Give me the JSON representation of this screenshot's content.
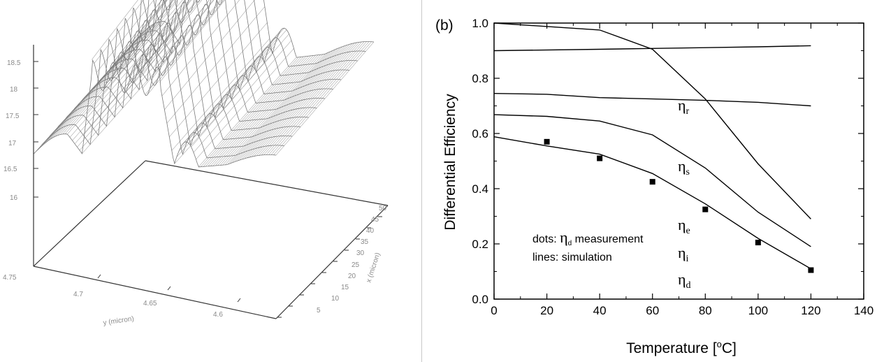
{
  "left_panel": {
    "z_ticks": [
      "18.5",
      "18",
      "17.5",
      "17",
      "16.5",
      "16"
    ],
    "y_ticks": [
      "4.75",
      "4.7",
      "4.65",
      "4.6"
    ],
    "y_label": "y (micron)",
    "x_ticks": [
      "5",
      "10",
      "15",
      "20",
      "25",
      "30",
      "35",
      "40",
      "45",
      "50"
    ],
    "x_label": "x (micron)"
  },
  "chart_data": {
    "type": "line",
    "panel_label": "(b)",
    "xlabel": "Temperature [",
    "xlabel_sup": "o",
    "xlabel_end": "C]",
    "ylabel": "Differential Efficiency",
    "xlim": [
      0,
      140
    ],
    "ylim": [
      0,
      1.0
    ],
    "x_ticks": [
      0,
      20,
      40,
      60,
      80,
      100,
      120,
      140
    ],
    "y_ticks": [
      "0.0",
      "0.2",
      "0.4",
      "0.6",
      "0.8",
      "1.0"
    ],
    "series": [
      {
        "name": "η_s",
        "sym": "η",
        "sub": "s",
        "x": [
          0,
          40,
          60,
          80,
          100,
          120
        ],
        "y": [
          0.9,
          0.905,
          0.908,
          0.911,
          0.914,
          0.918
        ]
      },
      {
        "name": "η_r",
        "sym": "η",
        "sub": "r",
        "x": [
          0,
          20,
          40,
          60,
          80,
          100,
          120
        ],
        "y": [
          0.745,
          0.742,
          0.73,
          0.725,
          0.72,
          0.713,
          0.7
        ]
      },
      {
        "name": "η_e",
        "sym": "η",
        "sub": "e",
        "x": [
          0,
          40,
          60,
          80,
          100,
          120
        ],
        "y": [
          1.0,
          0.975,
          0.905,
          0.725,
          0.49,
          0.29
        ]
      },
      {
        "name": "η_i",
        "sym": "η",
        "sub": "i",
        "x": [
          0,
          20,
          40,
          60,
          80,
          100,
          120
        ],
        "y": [
          0.668,
          0.662,
          0.645,
          0.595,
          0.475,
          0.315,
          0.19
        ]
      },
      {
        "name": "η_d",
        "sym": "η",
        "sub": "d",
        "x": [
          0,
          20,
          40,
          60,
          80,
          100,
          120
        ],
        "y": [
          0.588,
          0.555,
          0.525,
          0.455,
          0.345,
          0.22,
          0.11
        ]
      }
    ],
    "measurements": {
      "x": [
        20,
        40,
        60,
        80,
        100,
        120
      ],
      "y": [
        0.57,
        0.51,
        0.425,
        0.325,
        0.205,
        0.105
      ]
    },
    "annotation_dots_prefix": "dots: ",
    "annotation_dots_sym": "η",
    "annotation_dots_sub": "d",
    "annotation_dots_suffix": " measurement",
    "annotation_lines": "lines: simulation"
  }
}
